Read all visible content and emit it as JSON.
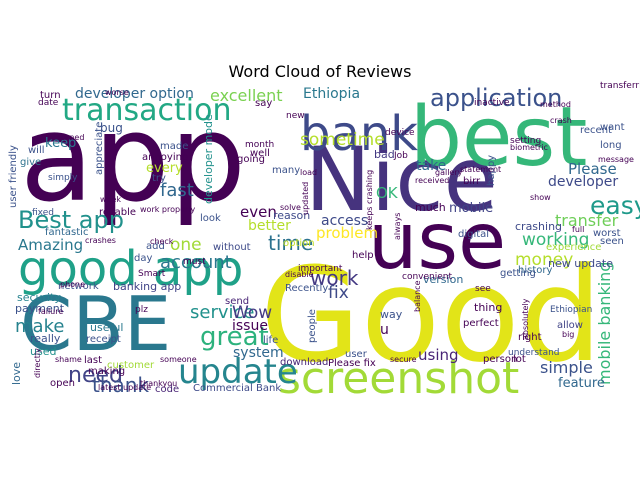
{
  "chart_data": {
    "type": "wordcloud",
    "title": "Word Cloud of Reviews",
    "colormap": "viridis",
    "background": "#ffffff",
    "words": [
      {
        "text": "Good",
        "color": "#e2e418"
      },
      {
        "text": "app",
        "color": "#440154"
      },
      {
        "text": "Nice",
        "color": "#46337e"
      },
      {
        "text": "best",
        "color": "#35b779"
      },
      {
        "text": "CBE",
        "color": "#2a788e"
      },
      {
        "text": "use",
        "color": "#440154"
      },
      {
        "text": "screenshot",
        "color": "#a2da37"
      },
      {
        "text": "good app",
        "color": "#1fa188"
      },
      {
        "text": "bank",
        "color": "#3e4a89"
      },
      {
        "text": "update",
        "color": "#25858e"
      },
      {
        "text": "transaction",
        "color": "#22a884"
      },
      {
        "text": "application",
        "color": "#3b528b"
      },
      {
        "text": "Best app",
        "color": "#21918c"
      },
      {
        "text": "easy",
        "color": "#1f9a8a"
      },
      {
        "text": "great",
        "color": "#2db27d"
      },
      {
        "text": "need",
        "color": "#414487"
      },
      {
        "text": "thank",
        "color": "#3b528b"
      },
      {
        "text": "time",
        "color": "#2c728e"
      },
      {
        "text": "excellent",
        "color": "#7ad151"
      },
      {
        "text": "Ethiopia",
        "color": "#2a788e"
      },
      {
        "text": "sometime",
        "color": "#b5de2b"
      },
      {
        "text": "developer option",
        "color": "#31688e"
      },
      {
        "text": "mobile banking",
        "color": "#35b779"
      },
      {
        "text": "work",
        "color": "#443983"
      },
      {
        "text": "account",
        "color": "#2a788e"
      },
      {
        "text": "service",
        "color": "#21918c"
      },
      {
        "text": "problem",
        "color": "#fde725"
      },
      {
        "text": "fix",
        "color": "#3e4a89"
      },
      {
        "text": "money",
        "color": "#b5de2b"
      },
      {
        "text": "working",
        "color": "#35b779"
      },
      {
        "text": "transfer",
        "color": "#6ece58"
      },
      {
        "text": "developer",
        "color": "#3e4a89"
      },
      {
        "text": "Please",
        "color": "#31688e"
      },
      {
        "text": "make",
        "color": "#26828e"
      },
      {
        "text": "Amazing",
        "color": "#2a788e"
      },
      {
        "text": "fast",
        "color": "#31688e"
      },
      {
        "text": "one",
        "color": "#a2da37"
      },
      {
        "text": "Wow",
        "color": "#443983"
      },
      {
        "text": "issue",
        "color": "#440154"
      },
      {
        "text": "system",
        "color": "#31688e"
      },
      {
        "text": "simple",
        "color": "#3b528b"
      },
      {
        "text": "feature",
        "color": "#31688e"
      },
      {
        "text": "using",
        "color": "#482475"
      },
      {
        "text": "OK",
        "color": "#35b779"
      },
      {
        "text": "access",
        "color": "#3e4a89"
      },
      {
        "text": "take",
        "color": "#31688e"
      },
      {
        "text": "mobile",
        "color": "#414487"
      },
      {
        "text": "even",
        "color": "#440154"
      },
      {
        "text": "reason",
        "color": "#3e4a89"
      },
      {
        "text": "better",
        "color": "#b5de2b"
      },
      {
        "text": "keep",
        "color": "#2a788e"
      },
      {
        "text": "bug",
        "color": "#3b528b"
      },
      {
        "text": "every",
        "color": "#b5de2b"
      },
      {
        "text": "developer mode",
        "color": "#21918c"
      },
      {
        "text": "banking app",
        "color": "#414487"
      },
      {
        "text": "security",
        "color": "#26828e"
      },
      {
        "text": "payment",
        "color": "#3b528b"
      },
      {
        "text": "useful",
        "color": "#2a788e"
      },
      {
        "text": "really",
        "color": "#3b528b"
      },
      {
        "text": "used",
        "color": "#21918c"
      },
      {
        "text": "love",
        "color": "#31688e"
      },
      {
        "text": "new update",
        "color": "#3e4a89"
      },
      {
        "text": "much",
        "color": "#440154"
      },
      {
        "text": "bad",
        "color": "#443983"
      },
      {
        "text": "crashing",
        "color": "#3e4a89"
      },
      {
        "text": "experience",
        "color": "#a2da37"
      },
      {
        "text": "history",
        "color": "#31688e"
      },
      {
        "text": "allow",
        "color": "#414487"
      },
      {
        "text": "thing",
        "color": "#440154"
      },
      {
        "text": "perfect",
        "color": "#440154"
      },
      {
        "text": "version",
        "color": "#31688e"
      },
      {
        "text": "way",
        "color": "#3b528b"
      },
      {
        "text": "u",
        "color": "#440154"
      },
      {
        "text": "Please fix",
        "color": "#440154"
      },
      {
        "text": "download",
        "color": "#482475"
      },
      {
        "text": "user",
        "color": "#3b528b"
      },
      {
        "text": "option",
        "color": "#c2df23"
      },
      {
        "text": "Commercial Bank",
        "color": "#3e4a89"
      },
      {
        "text": "customer",
        "color": "#a2da37"
      },
      {
        "text": "network",
        "color": "#3b528b"
      },
      {
        "text": "send",
        "color": "#482475"
      },
      {
        "text": "without",
        "color": "#3e4a89"
      },
      {
        "text": "give",
        "color": "#2c728e"
      },
      {
        "text": "made",
        "color": "#3b528b"
      },
      {
        "text": "try",
        "color": "#3b528b"
      },
      {
        "text": "many",
        "color": "#3b528b"
      },
      {
        "text": "annoying",
        "color": "#440154"
      },
      {
        "text": "appreciate",
        "color": "#3b528b"
      },
      {
        "text": "say",
        "color": "#440154"
      },
      {
        "text": "reliable",
        "color": "#440154"
      },
      {
        "text": "fantastic",
        "color": "#31688e"
      },
      {
        "text": "look",
        "color": "#3b528b"
      },
      {
        "text": "day",
        "color": "#3b528b"
      },
      {
        "text": "add",
        "color": "#3b528b"
      },
      {
        "text": "receipt",
        "color": "#3b528b"
      },
      {
        "text": "open",
        "color": "#440154"
      },
      {
        "text": "code",
        "color": "#482475"
      },
      {
        "text": "Recently",
        "color": "#3b528b"
      },
      {
        "text": "people",
        "color": "#3b528b"
      },
      {
        "text": "life",
        "color": "#3b528b"
      },
      {
        "text": "getting",
        "color": "#3b528b"
      },
      {
        "text": "worst",
        "color": "#3b528b"
      },
      {
        "text": "seen",
        "color": "#3b528b"
      },
      {
        "text": "recent",
        "color": "#3b528b"
      },
      {
        "text": "want",
        "color": "#3b528b"
      },
      {
        "text": "long",
        "color": "#3b528b"
      },
      {
        "text": "birr",
        "color": "#440154"
      },
      {
        "text": "happy",
        "color": "#3b528b"
      },
      {
        "text": "digital",
        "color": "#3b528b"
      },
      {
        "text": "turn",
        "color": "#440154"
      },
      {
        "text": "date",
        "color": "#440154"
      },
      {
        "text": "will",
        "color": "#3b528b"
      },
      {
        "text": "user friendly",
        "color": "#3b528b"
      },
      {
        "text": "simply",
        "color": "#3b528b"
      },
      {
        "text": "fixed",
        "color": "#3b528b"
      },
      {
        "text": "last",
        "color": "#440154"
      },
      {
        "text": "making",
        "color": "#440154"
      },
      {
        "text": "Smart",
        "color": "#440154"
      },
      {
        "text": "month",
        "color": "#440154"
      },
      {
        "text": "well",
        "color": "#440154"
      },
      {
        "text": "going",
        "color": "#440154"
      },
      {
        "text": "help",
        "color": "#440154"
      },
      {
        "text": "right",
        "color": "#440154"
      },
      {
        "text": "person",
        "color": "#440154"
      },
      {
        "text": "lot",
        "color": "#440154"
      },
      {
        "text": "understand",
        "color": "#3b528b"
      },
      {
        "text": "transferring",
        "color": "#440154"
      },
      {
        "text": "inactive",
        "color": "#440154"
      },
      {
        "text": "setting",
        "color": "#440154"
      },
      {
        "text": "device",
        "color": "#440154"
      },
      {
        "text": "new",
        "color": "#440154"
      },
      {
        "text": "solve",
        "color": "#440154"
      },
      {
        "text": "Job",
        "color": "#440154"
      },
      {
        "text": "convenient",
        "color": "#440154"
      },
      {
        "text": "Ethiopian",
        "color": "#3b528b"
      },
      {
        "text": "must",
        "color": "#440154"
      },
      {
        "text": "plz",
        "color": "#440154"
      },
      {
        "text": "important",
        "color": "#440154"
      },
      {
        "text": "see",
        "color": "#440154"
      },
      {
        "text": "full",
        "color": "#440154"
      },
      {
        "text": "worse",
        "color": "#440154"
      },
      {
        "text": "phone",
        "color": "#440154"
      },
      {
        "text": "turned",
        "color": "#440154"
      },
      {
        "text": "week",
        "color": "#440154"
      },
      {
        "text": "check",
        "color": "#440154"
      },
      {
        "text": "thankyou",
        "color": "#440154"
      },
      {
        "text": "shame",
        "color": "#440154"
      },
      {
        "text": "someone",
        "color": "#440154"
      },
      {
        "text": "directly",
        "color": "#440154"
      },
      {
        "text": "latest update",
        "color": "#440154"
      },
      {
        "text": "secure",
        "color": "#440154"
      },
      {
        "text": "big",
        "color": "#440154"
      },
      {
        "text": "statement",
        "color": "#440154"
      },
      {
        "text": "gallery",
        "color": "#440154"
      },
      {
        "text": "message",
        "color": "#440154"
      },
      {
        "text": "biometric",
        "color": "#440154"
      },
      {
        "text": "crash",
        "color": "#440154"
      },
      {
        "text": "show",
        "color": "#440154"
      },
      {
        "text": "received",
        "color": "#440154"
      },
      {
        "text": "work properly",
        "color": "#440154"
      },
      {
        "text": "crashes",
        "color": "#440154"
      },
      {
        "text": "failure",
        "color": "#440154"
      },
      {
        "text": "absolutely",
        "color": "#440154"
      },
      {
        "text": "balance",
        "color": "#440154"
      },
      {
        "text": "keeps crashing",
        "color": "#440154"
      },
      {
        "text": "disable",
        "color": "#440154"
      },
      {
        "text": "load",
        "color": "#440154"
      },
      {
        "text": "always",
        "color": "#440154"
      },
      {
        "text": "updated",
        "color": "#440154"
      },
      {
        "text": "method",
        "color": "#440154"
      }
    ]
  }
}
